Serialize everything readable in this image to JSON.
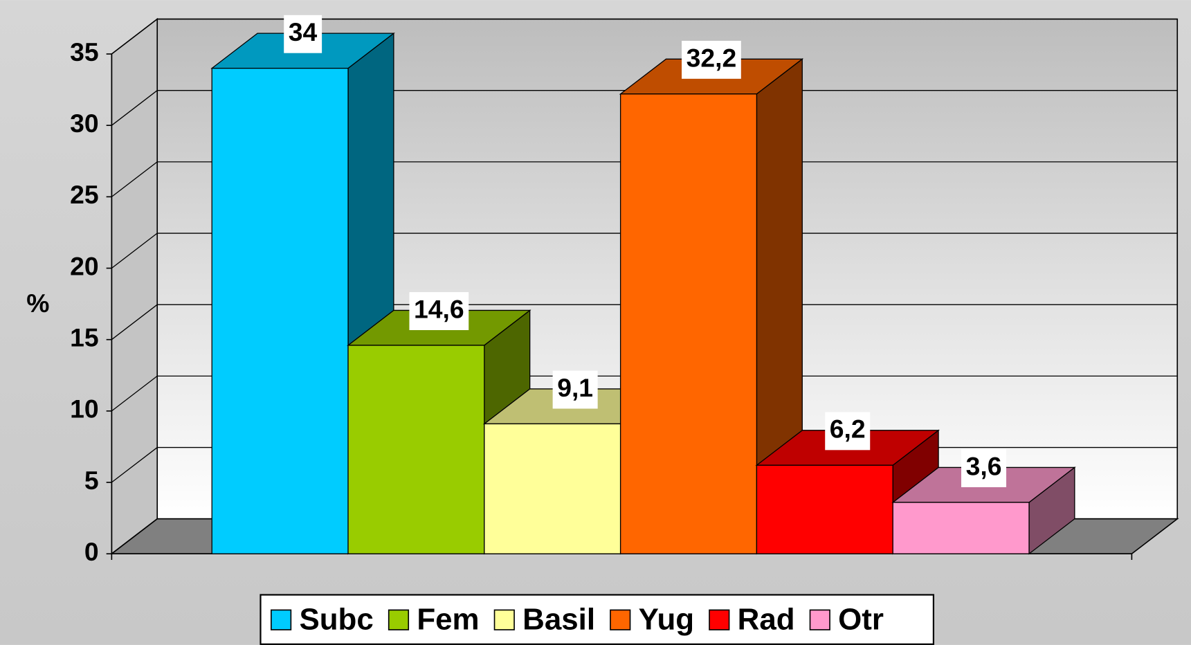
{
  "chart_data": {
    "type": "bar3d",
    "y_label": "%",
    "ylim": [
      0,
      35
    ],
    "yticks": [
      0,
      5,
      10,
      15,
      20,
      25,
      30,
      35
    ],
    "grid": true,
    "legend": "bottom",
    "series": [
      {
        "name": "Subc",
        "color": "#00ccff",
        "values": [
          34
        ],
        "value_labels": [
          "34"
        ]
      },
      {
        "name": "Fem",
        "color": "#99cc00",
        "values": [
          14.6
        ],
        "value_labels": [
          "14,6"
        ]
      },
      {
        "name": "Basil",
        "color": "#ffff99",
        "values": [
          9.1
        ],
        "value_labels": [
          "9,1"
        ]
      },
      {
        "name": "Yug",
        "color": "#ff6600",
        "values": [
          32.2
        ],
        "value_labels": [
          "32,2"
        ]
      },
      {
        "name": "Rad",
        "color": "#ff0000",
        "values": [
          6.2
        ],
        "value_labels": [
          "6,2"
        ]
      },
      {
        "name": "Otr",
        "color": "#ff99cc",
        "values": [
          3.6
        ],
        "value_labels": [
          "3,6"
        ]
      }
    ]
  }
}
